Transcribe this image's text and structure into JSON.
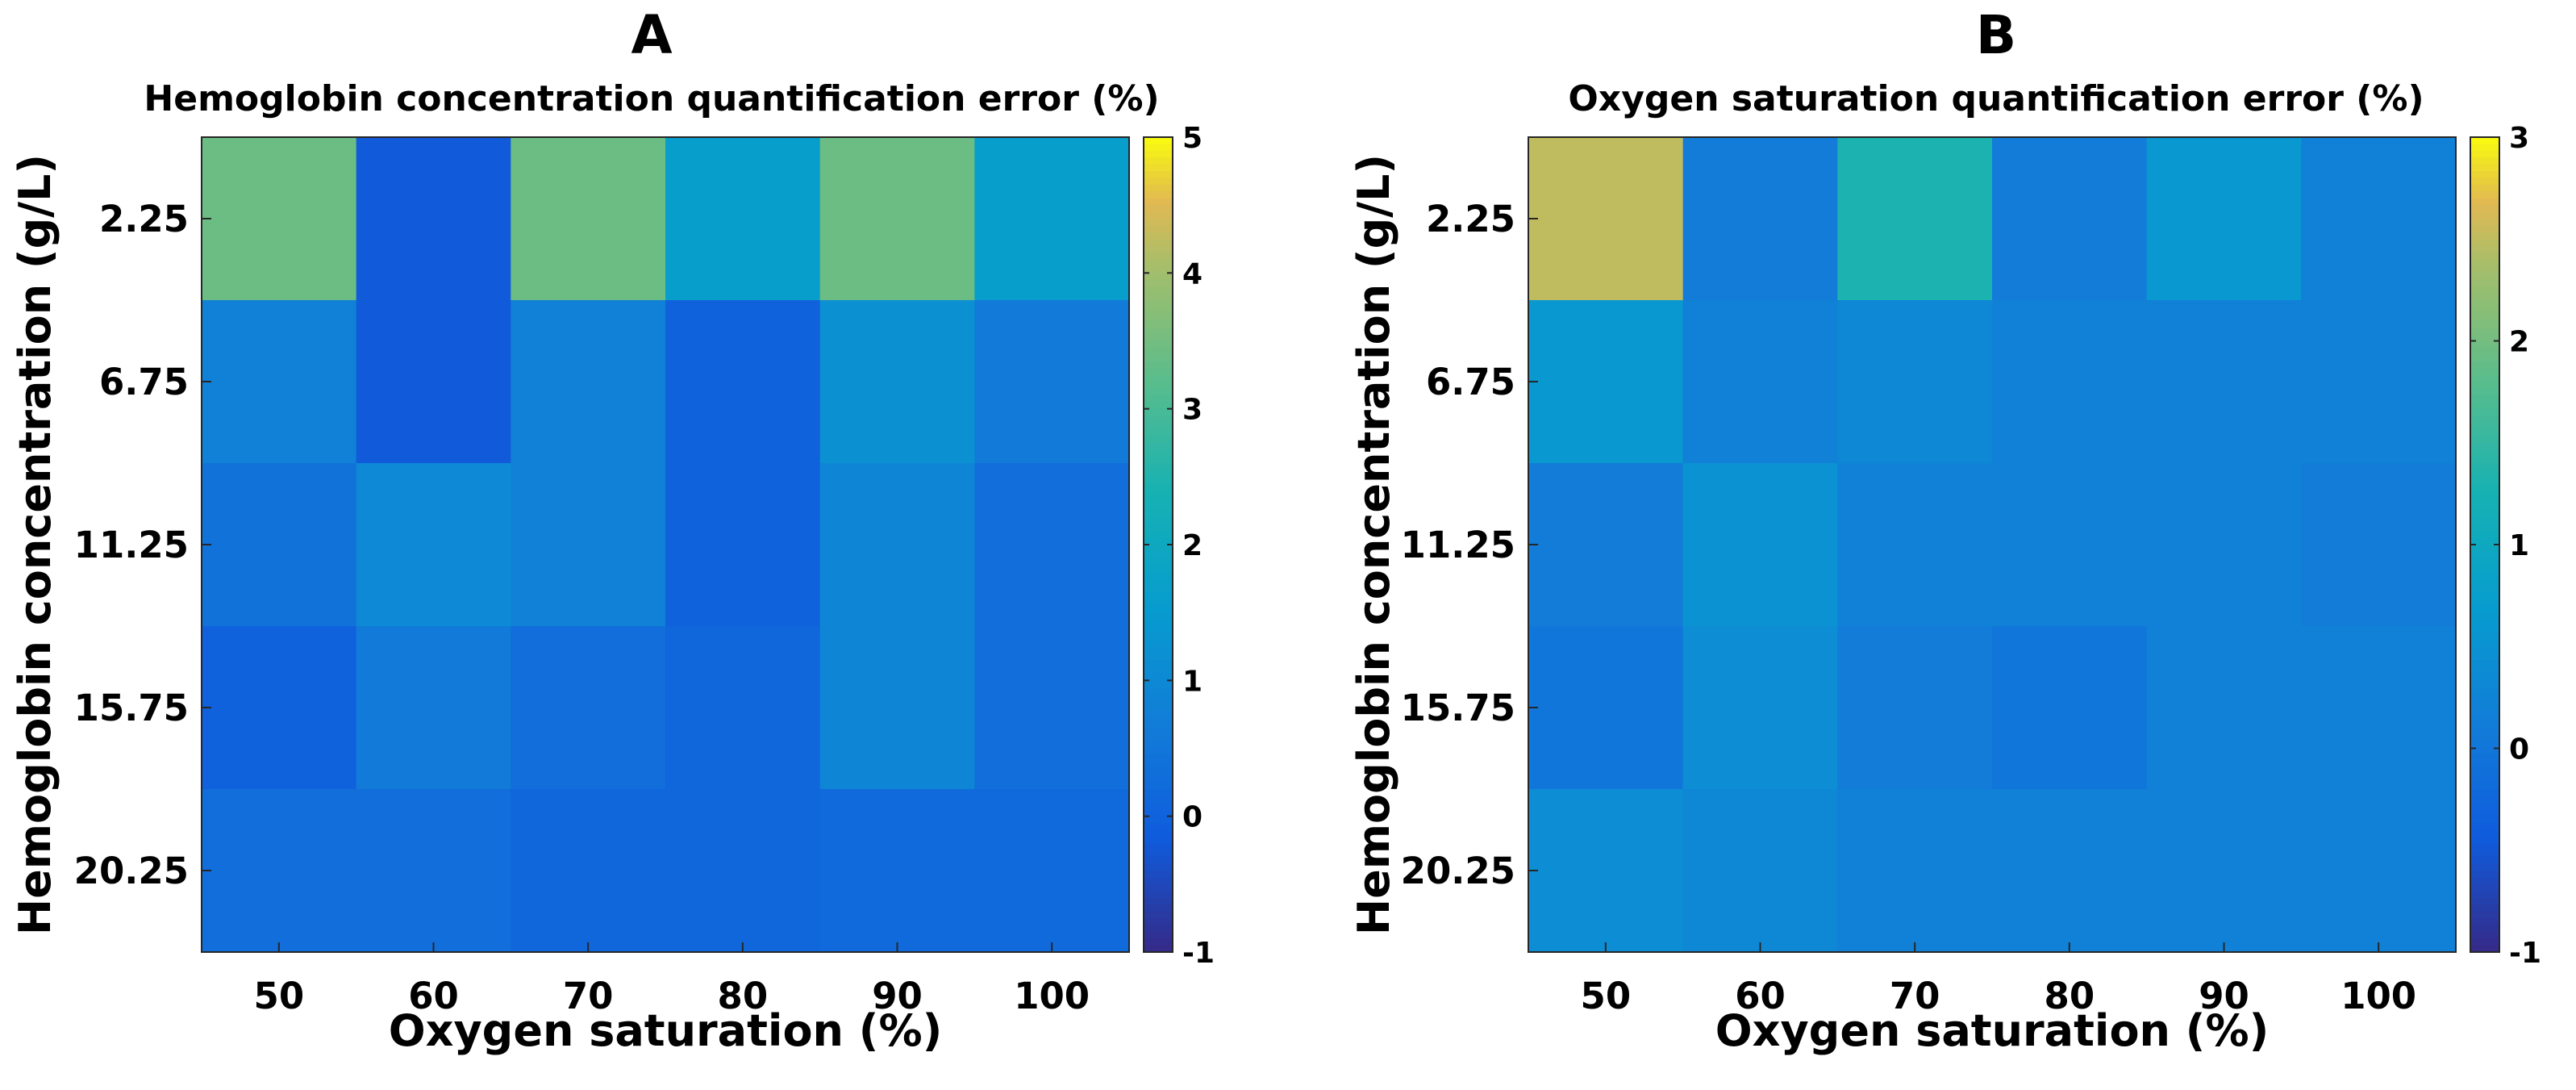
{
  "chart_data": [
    {
      "type": "heatmap",
      "panel": "A",
      "title": "Hemoglobin concentration quantification error (%)",
      "xlabel": "Oxygen saturation (%)",
      "ylabel": "Hemoglobin concentration (g/L)",
      "x_categories": [
        "50",
        "60",
        "70",
        "80",
        "90",
        "100"
      ],
      "y_categories": [
        "2.25",
        "6.75",
        "11.25",
        "15.75",
        "20.25"
      ],
      "values": [
        [
          3.4,
          -0.2,
          3.4,
          1.6,
          3.4,
          1.6
        ],
        [
          0.8,
          -0.2,
          0.8,
          0.0,
          1.2,
          0.6
        ],
        [
          0.4,
          1.0,
          0.8,
          0.0,
          0.9,
          0.3
        ],
        [
          0.0,
          0.6,
          0.3,
          0.1,
          0.9,
          0.3
        ],
        [
          0.3,
          0.3,
          0.1,
          0.1,
          0.2,
          0.2
        ]
      ],
      "clim": [
        -1,
        5
      ],
      "colorbar_ticks": [
        "5",
        "4",
        "3",
        "2",
        "1",
        "0",
        "-1"
      ],
      "colormap": "parula"
    },
    {
      "type": "heatmap",
      "panel": "B",
      "title": "Oxygen saturation quantification error (%)",
      "xlabel": "Oxygen saturation (%)",
      "ylabel": "Hemoglobin concentration (g/L)",
      "x_categories": [
        "50",
        "60",
        "70",
        "80",
        "90",
        "100"
      ],
      "y_categories": [
        "2.25",
        "6.75",
        "11.25",
        "15.75",
        "20.25"
      ],
      "values": [
        [
          2.5,
          0.1,
          1.3,
          0.1,
          0.6,
          0.2
        ],
        [
          0.6,
          0.2,
          0.3,
          0.2,
          0.2,
          0.2
        ],
        [
          0.1,
          0.5,
          0.2,
          0.2,
          0.2,
          0.1
        ],
        [
          0.0,
          0.4,
          0.1,
          0.0,
          0.2,
          0.2
        ],
        [
          0.4,
          0.3,
          0.2,
          0.2,
          0.2,
          0.2
        ]
      ],
      "clim": [
        -1,
        3
      ],
      "colorbar_ticks": [
        "3",
        "2",
        "1",
        "0",
        "-1"
      ],
      "colormap": "parula"
    }
  ]
}
